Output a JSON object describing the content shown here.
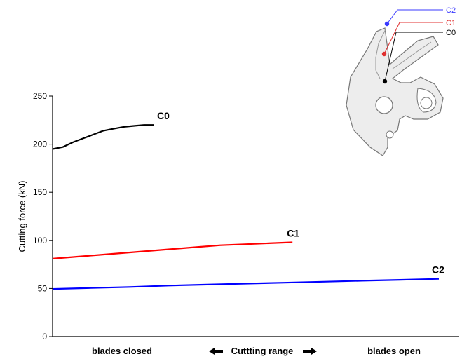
{
  "chart_data": {
    "type": "line",
    "ylabel": "Cutting force (kN)",
    "ylim": [
      0,
      250
    ],
    "yticks": [
      0,
      50,
      100,
      150,
      200,
      250
    ],
    "x_categories": [
      "blades closed",
      "Cuttting range",
      "blades open"
    ],
    "x": [
      0,
      0.1,
      0.2,
      0.3,
      0.4,
      0.5,
      0.6,
      0.7,
      0.8,
      0.9,
      1.0
    ],
    "grid": false,
    "series": [
      {
        "name": "C0",
        "color": "#000000",
        "x_end": 0.25,
        "values": [
          195,
          197,
          202,
          206,
          210,
          214,
          216,
          218,
          219,
          220,
          220
        ]
      },
      {
        "name": "C1",
        "color": "#ff0000",
        "x_end": 0.59,
        "values": [
          81,
          83,
          85,
          87,
          89,
          91,
          93,
          95,
          96,
          97,
          98
        ]
      },
      {
        "name": "C2",
        "color": "#0000ff",
        "x_end": 0.95,
        "values": [
          49.5,
          50.5,
          51.5,
          53,
          54,
          55,
          56,
          57,
          58,
          59,
          60
        ]
      }
    ]
  },
  "inset": {
    "labels": [
      "C2",
      "C1",
      "C0"
    ],
    "colors": [
      "#3a3aff",
      "#e03030",
      "#000000"
    ]
  }
}
